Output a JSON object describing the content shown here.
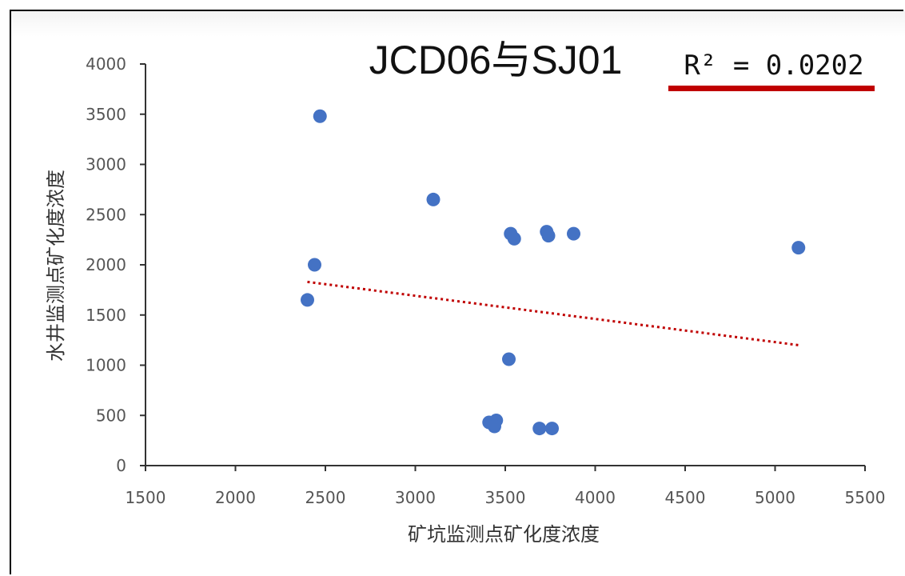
{
  "chart_data": {
    "type": "scatter",
    "title": "JCD06与SJ01",
    "xlabel": "矿坑监测点矿化度浓度",
    "ylabel": "水井监测点矿化度浓度",
    "xlim": [
      1500,
      5500
    ],
    "ylim": [
      0,
      4000
    ],
    "x_ticks": [
      "1500",
      "2000",
      "2500",
      "3000",
      "3500",
      "4000",
      "4500",
      "5000",
      "5500"
    ],
    "y_ticks": [
      "0",
      "500",
      "1000",
      "1500",
      "2000",
      "2500",
      "3000",
      "3500",
      "4000"
    ],
    "points": [
      {
        "x": 2470,
        "y": 3480
      },
      {
        "x": 3100,
        "y": 2650
      },
      {
        "x": 2440,
        "y": 2000
      },
      {
        "x": 2400,
        "y": 1650
      },
      {
        "x": 3530,
        "y": 2310
      },
      {
        "x": 3550,
        "y": 2260
      },
      {
        "x": 3730,
        "y": 2330
      },
      {
        "x": 3740,
        "y": 2290
      },
      {
        "x": 3880,
        "y": 2310
      },
      {
        "x": 5130,
        "y": 2170
      },
      {
        "x": 3520,
        "y": 1060
      },
      {
        "x": 3410,
        "y": 430
      },
      {
        "x": 3450,
        "y": 450
      },
      {
        "x": 3440,
        "y": 390
      },
      {
        "x": 3690,
        "y": 370
      },
      {
        "x": 3760,
        "y": 370
      }
    ],
    "trendline": {
      "x": [
        2400,
        5130
      ],
      "y": [
        1830,
        1200
      ]
    },
    "annotation": "R² = 0.0202",
    "colors": {
      "points": "#4472C4",
      "trendline": "#C00000",
      "underline": "#C00000"
    }
  }
}
